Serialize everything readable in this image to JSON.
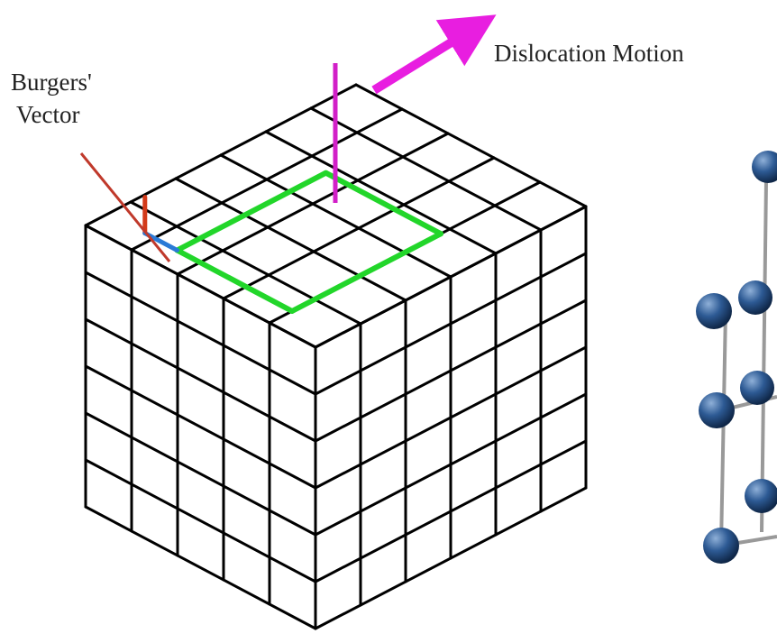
{
  "title": "Dislocation Motion",
  "vector_label": [
    "Burgers'",
    "Vector"
  ]
}
